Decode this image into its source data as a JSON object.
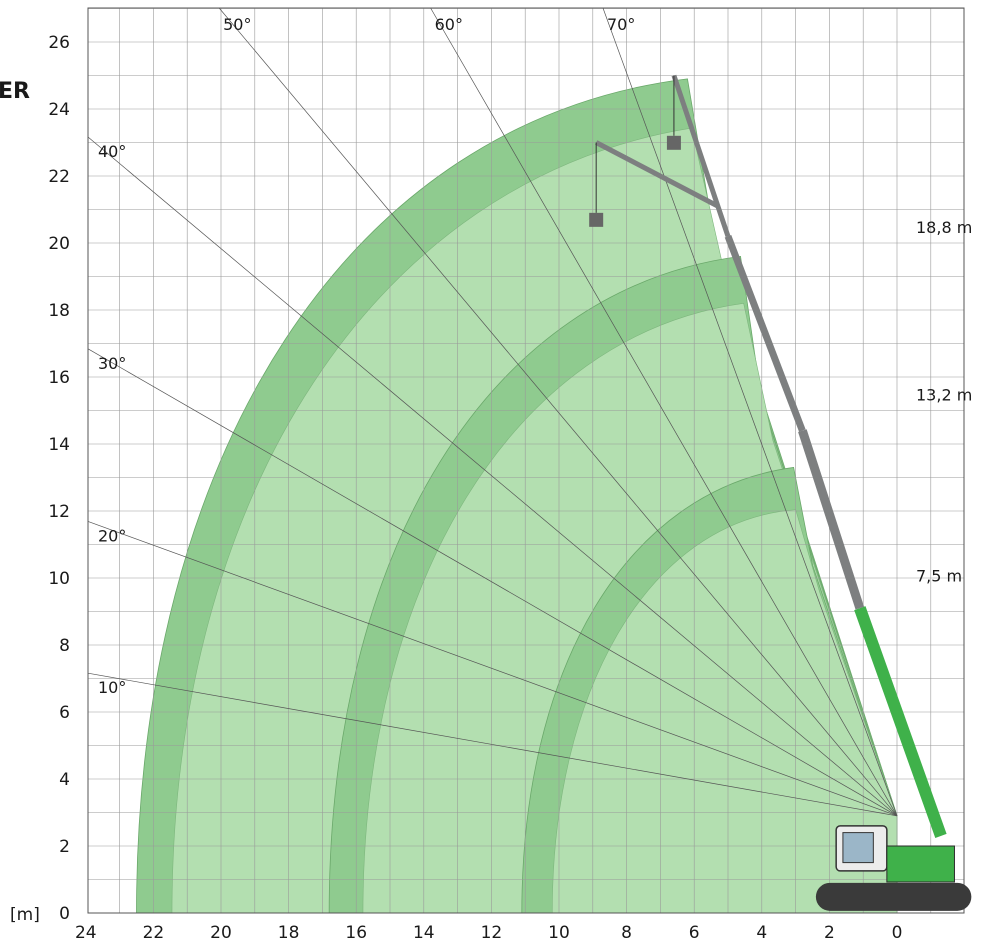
{
  "header_fragment": "ER",
  "unit_label": "[m]",
  "colors": {
    "zone_dark": "#8fcb8f",
    "zone_light": "#b3dfb0",
    "boom": "#7d7f80",
    "boom_green": "#3fb14a",
    "grid": "#9a9a9a"
  },
  "chart_data": {
    "type": "range-diagram",
    "xlabel": "",
    "ylabel": "",
    "x_ticks": [
      "24",
      "22",
      "20",
      "18",
      "16",
      "14",
      "12",
      "10",
      "8",
      "6",
      "4",
      "2",
      "0"
    ],
    "y_ticks": [
      "0",
      "2",
      "4",
      "6",
      "8",
      "10",
      "12",
      "14",
      "16",
      "18",
      "20",
      "22",
      "24",
      "26"
    ],
    "x_range": [
      24,
      -2
    ],
    "y_range": [
      0,
      27
    ],
    "angle_lines": [
      {
        "label": "10°",
        "deg": 10
      },
      {
        "label": "20°",
        "deg": 20
      },
      {
        "label": "30°",
        "deg": 30
      },
      {
        "label": "40°",
        "deg": 40
      },
      {
        "label": "50°",
        "deg": 50
      },
      {
        "label": "60°",
        "deg": 60
      },
      {
        "label": "70°",
        "deg": 70
      }
    ],
    "boom_lengths": [
      {
        "label": "7,5 m",
        "outer_radius": 11.1,
        "band_width": 0.9,
        "apex_height": 13.3
      },
      {
        "label": "13,2 m",
        "outer_radius": 16.8,
        "band_width": 1.0,
        "apex_height": 19.6
      },
      {
        "label": "18,8 m",
        "outer_radius": 22.5,
        "band_width": 1.05,
        "apex_height": 24.9
      }
    ]
  }
}
